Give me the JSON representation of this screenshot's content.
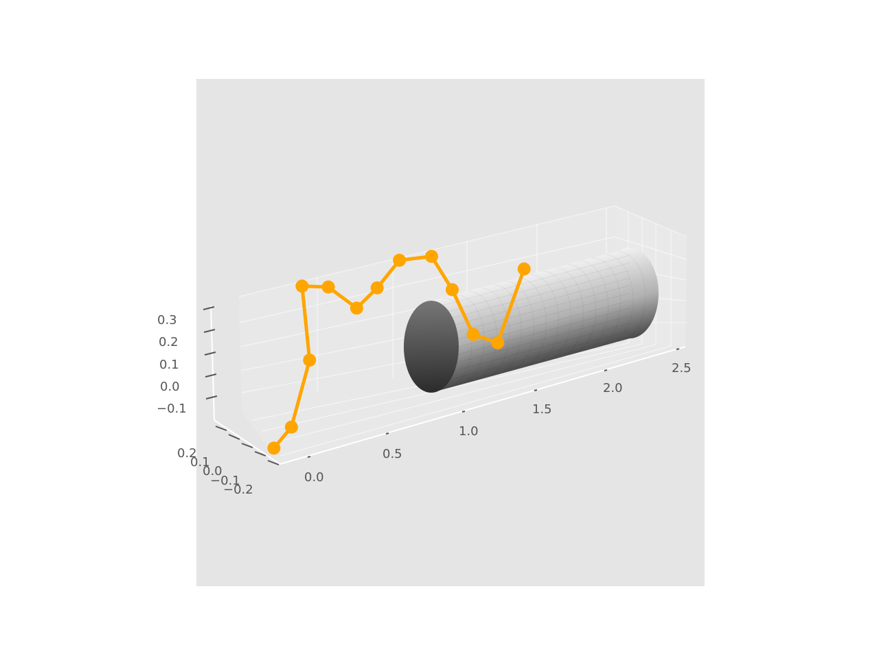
{
  "chart_data": {
    "type": "line3d",
    "title": "",
    "xlabel": "",
    "ylabel": "",
    "zlabel": "",
    "x_ticks": [
      "0.0",
      "0.5",
      "1.0",
      "1.5",
      "2.0",
      "2.5"
    ],
    "y_ticks": [
      "0.2",
      "0.1",
      "0.0",
      "−0.1",
      "−0.2"
    ],
    "z_ticks": [
      "0.3",
      "0.2",
      "0.1",
      "0.0",
      "−0.1"
    ],
    "xlim": [
      -0.1,
      2.6
    ],
    "ylim": [
      -0.25,
      0.25
    ],
    "zlim": [
      -0.15,
      0.35
    ],
    "grid": true,
    "series": [
      {
        "color": "#ffa500",
        "marker": "circle",
        "points": [
          {
            "x": 0.0,
            "y": 0.05,
            "z": -0.12
          },
          {
            "x": 0.05,
            "y": 0.0,
            "z": -0.05
          },
          {
            "x": 0.08,
            "y": 0.02,
            "z": 0.12
          },
          {
            "x": 0.0,
            "y": 0.15,
            "z": 0.28
          },
          {
            "x": 0.15,
            "y": 0.1,
            "z": 0.28
          },
          {
            "x": 0.35,
            "y": 0.05,
            "z": 0.22
          },
          {
            "x": 0.5,
            "y": 0.1,
            "z": 0.24
          },
          {
            "x": 0.65,
            "y": 0.15,
            "z": 0.28
          },
          {
            "x": 0.85,
            "y": 0.12,
            "z": 0.28
          },
          {
            "x": 1.0,
            "y": 0.05,
            "z": 0.2
          },
          {
            "x": 1.15,
            "y": -0.05,
            "z": 0.1
          },
          {
            "x": 1.3,
            "y": -0.1,
            "z": 0.08
          },
          {
            "x": 1.4,
            "y": -0.05,
            "z": 0.25
          }
        ]
      }
    ],
    "surface": {
      "shape": "cylinder",
      "axis": "x",
      "x_range": [
        1.0,
        2.5
      ],
      "radius": 0.2,
      "colormap": "gray"
    }
  }
}
